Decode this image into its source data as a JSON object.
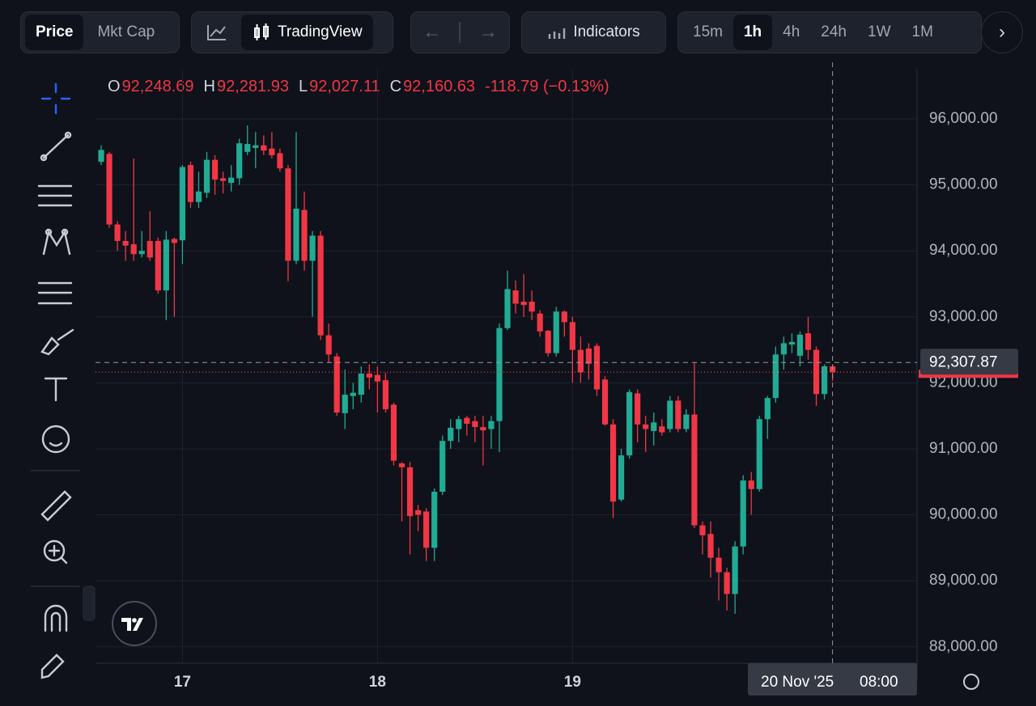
{
  "toolbar": {
    "modes": [
      "Price",
      "Mkt Cap"
    ],
    "active_mode": "Price",
    "chart_style": "TradingView",
    "indicators": "Indicators",
    "intervals": [
      "15m",
      "1h",
      "4h",
      "24h",
      "1W",
      "1M"
    ],
    "active_interval": "1h"
  },
  "chart_data": {
    "type": "candlestick",
    "ohlc_legend": [
      {
        "label": "O",
        "value": "92,248.69"
      },
      {
        "label": "H",
        "value": "92,281.93"
      },
      {
        "label": "L",
        "value": "92,027.11"
      },
      {
        "label": "C",
        "value": "92,160.63"
      }
    ],
    "change_label": "-118.79 (−0.13%)",
    "categories": [
      null,
      null,
      null,
      null,
      null,
      null,
      null,
      null,
      null,
      null,
      "17",
      null,
      null,
      null,
      null,
      null,
      null,
      null,
      null,
      null,
      null,
      null,
      null,
      null,
      null,
      null,
      null,
      null,
      null,
      null,
      null,
      null,
      null,
      null,
      "18",
      null,
      null,
      null,
      null,
      null,
      null,
      null,
      null,
      null,
      null,
      null,
      null,
      null,
      null,
      null,
      null,
      null,
      null,
      null,
      null,
      null,
      null,
      null,
      "19",
      null,
      null,
      null,
      null,
      null,
      null,
      null,
      null,
      null,
      null,
      null,
      null,
      null,
      null,
      null,
      null,
      null,
      null,
      null,
      null,
      null,
      null,
      null,
      null,
      null,
      null,
      null,
      null,
      null,
      null,
      null,
      null
    ],
    "open": [
      95350,
      95470,
      94400,
      94150,
      94100,
      93950,
      94150,
      94150,
      93400,
      94180,
      94160,
      95300,
      94740,
      94880,
      95380,
      95100,
      95030,
      95100,
      95500,
      95560,
      95600,
      95550,
      95480,
      95250,
      93850,
      94620,
      93850,
      94230,
      92720,
      92400,
      91540,
      91800,
      91820,
      92140,
      92120,
      92040,
      91670,
      90780,
      90720,
      90070,
      90050,
      89500,
      90350,
      91120,
      91300,
      91470,
      91420,
      91330,
      91300,
      91420,
      92830,
      93400,
      93230,
      93230,
      93050,
      92790,
      92450,
      93080,
      92920,
      92500,
      92520,
      92560,
      92050,
      91370,
      90230,
      90900,
      91840,
      91370,
      91270,
      91340,
      91300,
      91730,
      91300,
      91520,
      89840,
      89710,
      89350,
      89130,
      88800,
      89520,
      90520,
      90390,
      91450,
      91770,
      92430,
      92580,
      92410,
      92750,
      92500,
      91830,
      92248.69
    ],
    "high": [
      95600,
      95500,
      94450,
      94300,
      95400,
      94300,
      94600,
      94200,
      94300,
      94200,
      95300,
      95350,
      95200,
      95500,
      95450,
      95200,
      95300,
      95700,
      95900,
      95800,
      95750,
      95800,
      95550,
      95300,
      95800,
      94900,
      94300,
      94300,
      92900,
      92450,
      92200,
      92000,
      92250,
      92280,
      92250,
      92150,
      91700,
      90800,
      90800,
      90150,
      90100,
      90400,
      91200,
      91450,
      91500,
      91500,
      91500,
      91500,
      91500,
      92900,
      93700,
      93550,
      93650,
      93400,
      93100,
      92800,
      93150,
      93100,
      93000,
      92700,
      92600,
      92600,
      92100,
      91450,
      91000,
      91900,
      91900,
      91500,
      91550,
      91450,
      91800,
      91800,
      91600,
      92300,
      89900,
      89900,
      89500,
      89200,
      89600,
      90600,
      90650,
      91500,
      91800,
      92550,
      92700,
      92750,
      92780,
      93000,
      92550,
      92280,
      92281.93
    ],
    "low": [
      95300,
      94350,
      94000,
      93850,
      93850,
      93900,
      93850,
      93350,
      92950,
      93000,
      93800,
      94650,
      94650,
      94800,
      94850,
      94870,
      94900,
      95000,
      95450,
      95250,
      95450,
      95400,
      95200,
      93540,
      93800,
      93700,
      93000,
      92650,
      92300,
      91500,
      91300,
      91600,
      91700,
      91900,
      91550,
      91550,
      90750,
      89900,
      89400,
      89750,
      89300,
      89300,
      90300,
      91000,
      91100,
      91200,
      91100,
      90750,
      91000,
      90950,
      92800,
      93050,
      93000,
      92950,
      92700,
      92400,
      92400,
      92700,
      92000,
      92000,
      92050,
      91800,
      91350,
      89950,
      90200,
      90850,
      91100,
      90950,
      91050,
      91200,
      91250,
      91250,
      91250,
      89800,
      89400,
      89050,
      88700,
      88550,
      88500,
      89400,
      90000,
      90350,
      91150,
      91700,
      92200,
      92450,
      92250,
      92350,
      91650,
      91750,
      92027.11
    ],
    "close": [
      95530,
      94400,
      94150,
      94080,
      93950,
      94000,
      93900,
      93400,
      94170,
      94120,
      95270,
      94740,
      94900,
      95380,
      95080,
      95060,
      95110,
      95630,
      95620,
      95600,
      95520,
      95450,
      95250,
      93850,
      94640,
      93850,
      94230,
      92720,
      92430,
      91550,
      91820,
      91850,
      92140,
      92080,
      92020,
      91600,
      90820,
      90720,
      89980,
      90000,
      89500,
      90350,
      91120,
      91320,
      91450,
      91380,
      91330,
      91280,
      91420,
      92830,
      93420,
      93200,
      93180,
      93080,
      92780,
      92450,
      93080,
      92920,
      92500,
      92160,
      92290,
      91900,
      91370,
      90200,
      90900,
      91860,
      91370,
      91300,
      91400,
      91250,
      91730,
      91300,
      91520,
      89840,
      89690,
      89350,
      89130,
      88800,
      89520,
      90520,
      90390,
      91450,
      91770,
      92430,
      92600,
      92620,
      92730,
      92500,
      91830,
      92250,
      92160.63
    ],
    "up_color": "#22ab94",
    "down_color": "#f23645",
    "ylim": [
      87752,
      96760
    ],
    "yticks": [
      {
        "value": 88000,
        "label": "88,000.00"
      },
      {
        "value": 89000,
        "label": "89,000.00"
      },
      {
        "value": 90000,
        "label": "90,000.00"
      },
      {
        "value": 91000,
        "label": "91,000.00"
      },
      {
        "value": 92000,
        "label": "92,000.00"
      },
      {
        "value": 93000,
        "label": "93,000.00"
      },
      {
        "value": 94000,
        "label": "94,000.00"
      },
      {
        "value": 95000,
        "label": "95,000.00"
      },
      {
        "value": 96000,
        "label": "96,000.00"
      }
    ],
    "grid": true,
    "last_price": 92160.63,
    "crosshair_price": {
      "value": 92307.87,
      "label": "92,307.87"
    },
    "crosshair_time": [
      "20 Nov '25",
      "08:00"
    ]
  }
}
